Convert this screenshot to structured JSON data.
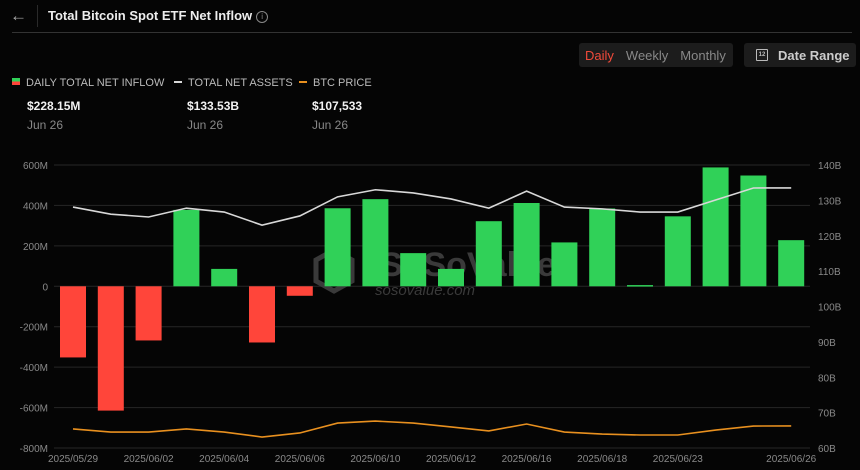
{
  "header": {
    "title": "Total Bitcoin Spot ETF Net Inflow",
    "back_icon": "arrow-left-icon",
    "info_icon": "i"
  },
  "controls": {
    "periods": [
      "Daily",
      "Weekly",
      "Monthly"
    ],
    "active_period": "Daily",
    "date_range_label": "Date Range",
    "calendar_icon_text": "12"
  },
  "legend": [
    {
      "label": "DAILY TOTAL NET INFLOW",
      "value": "$228.15M",
      "date": "Jun 26"
    },
    {
      "label": "TOTAL NET ASSETS",
      "value": "$133.53B",
      "date": "Jun 26"
    },
    {
      "label": "BTC PRICE",
      "value": "$107,533",
      "date": "Jun 26"
    }
  ],
  "colors": {
    "positive": "#30d158",
    "negative": "#ff453a",
    "assets": "#d8d8d8",
    "price": "#e8901f",
    "grid": "#262626"
  },
  "watermark": {
    "brand": "SoSoValue",
    "url": "sosovalue.com"
  },
  "chart_data": {
    "type": "bar",
    "title": "Total Bitcoin Spot ETF Net Inflow",
    "categories": [
      "2025/05/29",
      "2025/05/30",
      "2025/06/02",
      "2025/06/03",
      "2025/06/04",
      "2025/06/05",
      "2025/06/06",
      "2025/06/09",
      "2025/06/10",
      "2025/06/11",
      "2025/06/12",
      "2025/06/13",
      "2025/06/16",
      "2025/06/17",
      "2025/06/18",
      "2025/06/20",
      "2025/06/23",
      "2025/06/24",
      "2025/06/25",
      "2025/06/26"
    ],
    "x_tick_labels": [
      "2025/05/29",
      "2025/06/02",
      "2025/06/04",
      "2025/06/06",
      "2025/06/10",
      "2025/06/12",
      "2025/06/16",
      "2025/06/18",
      "2025/06/23",
      "2025/06/26"
    ],
    "x_tick_indices": [
      0,
      2,
      4,
      6,
      8,
      10,
      12,
      14,
      16,
      19
    ],
    "series": [
      {
        "name": "DAILY TOTAL NET INFLOW",
        "type": "bar",
        "unit": "M USD",
        "axis": "left",
        "values": [
          -352,
          -615,
          -268,
          378,
          86,
          -278,
          -47,
          386,
          431,
          164,
          86,
          322,
          412,
          217,
          385,
          6,
          346,
          588,
          548,
          228.15
        ]
      },
      {
        "name": "TOTAL NET ASSETS",
        "type": "line",
        "unit": "B USD",
        "axis": "right",
        "values": [
          128.1,
          126.1,
          125.3,
          127.8,
          126.7,
          123.0,
          125.6,
          131.0,
          133.0,
          132.1,
          130.4,
          127.8,
          132.6,
          128.1,
          127.6,
          126.7,
          126.7,
          130.1,
          133.5,
          133.53
        ]
      },
      {
        "name": "BTC PRICE",
        "type": "line",
        "unit": "USD",
        "axis": "hidden",
        "values": [
          105900,
          104200,
          104200,
          105900,
          104200,
          101500,
          103700,
          109100,
          110200,
          109100,
          107000,
          104800,
          108600,
          104200,
          103100,
          102600,
          102600,
          105300,
          107500,
          107533
        ]
      }
    ],
    "left_axis": {
      "ylim": [
        -800,
        600
      ],
      "ticks": [
        "600M",
        "400M",
        "200M",
        "0",
        "-200M",
        "-400M",
        "-600M",
        "-800M"
      ],
      "tick_values": [
        600,
        400,
        200,
        0,
        -200,
        -400,
        -600,
        -800
      ]
    },
    "right_axis": {
      "ylim": [
        60,
        140
      ],
      "ticks": [
        "140B",
        "130B",
        "120B",
        "110B",
        "100B",
        "90B",
        "80B",
        "70B",
        "60B"
      ],
      "tick_values": [
        140,
        130,
        120,
        110,
        100,
        90,
        80,
        70,
        60
      ]
    },
    "price_axis_range": [
      95500,
      250000
    ],
    "grid": true,
    "legend_placement": "top-left"
  }
}
